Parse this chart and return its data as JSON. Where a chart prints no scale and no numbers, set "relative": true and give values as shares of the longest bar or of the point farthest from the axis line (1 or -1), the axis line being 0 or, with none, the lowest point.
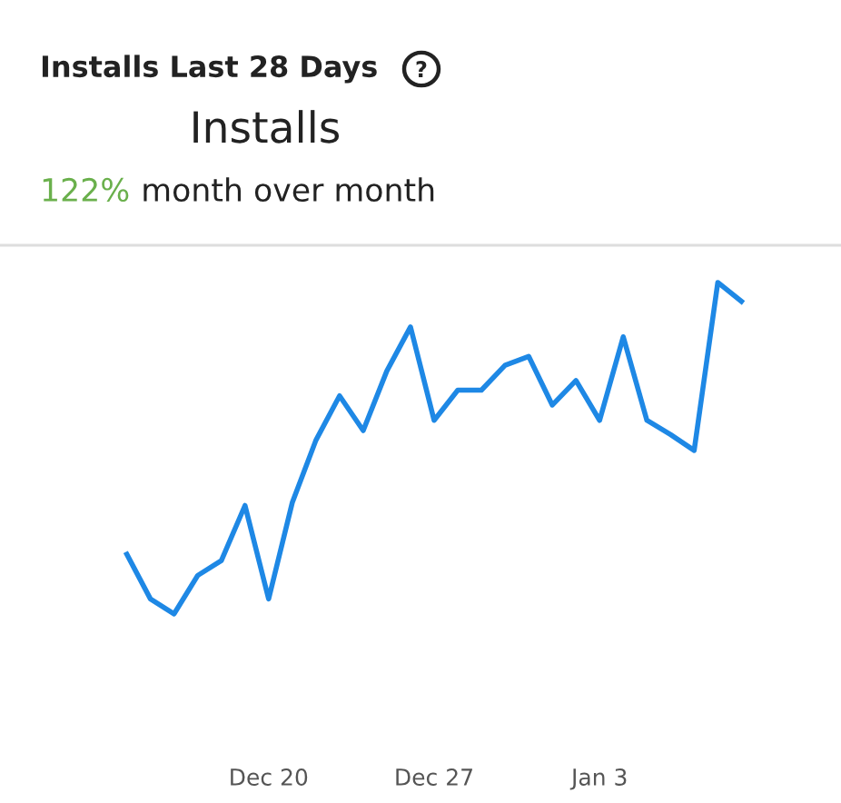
{
  "chart_data": {
    "type": "line",
    "title": "Installs Last 28 Days",
    "subtitle": "Installs",
    "annotations": [
      "122% month over month"
    ],
    "categories": [
      null,
      null,
      null,
      null,
      null,
      null,
      "Dec 20",
      null,
      null,
      null,
      null,
      null,
      null,
      "Dec 27",
      null,
      null,
      null,
      null,
      null,
      null,
      "Jan 3",
      null,
      null,
      null,
      null,
      null,
      null
    ],
    "relative": true,
    "grid": false,
    "legend": false,
    "marker": "none",
    "line_style": "solid",
    "series": [
      {
        "color": "#1e88e5",
        "values": [
          0.18,
          0.045,
          0,
          0.116,
          0.161,
          0.327,
          0.045,
          0.336,
          0.524,
          0.658,
          0.553,
          0.733,
          0.866,
          0.584,
          0.675,
          0.675,
          0.75,
          0.777,
          0.63,
          0.704,
          0.584,
          0.836,
          0.584,
          0.541,
          0.493,
          1,
          0.943
        ]
      }
    ]
  }
}
